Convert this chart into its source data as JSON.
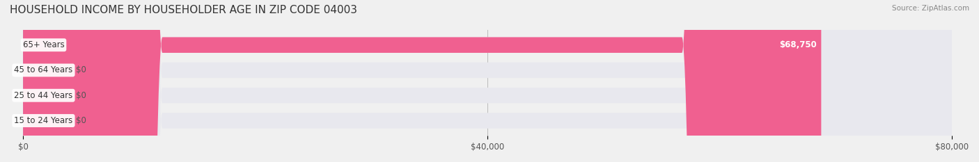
{
  "title": "HOUSEHOLD INCOME BY HOUSEHOLDER AGE IN ZIP CODE 04003",
  "source": "Source: ZipAtlas.com",
  "categories": [
    "15 to 24 Years",
    "25 to 44 Years",
    "45 to 64 Years",
    "65+ Years"
  ],
  "values": [
    0,
    0,
    0,
    68750
  ],
  "bar_colors": [
    "#d8a0c8",
    "#7ecece",
    "#a8a8d8",
    "#f06090"
  ],
  "label_colors": [
    "#d8a0c8",
    "#7ecece",
    "#a8a8d8",
    "#f06090"
  ],
  "xlim": [
    0,
    80000
  ],
  "xticks": [
    0,
    40000,
    80000
  ],
  "xtick_labels": [
    "$0",
    "$40,000",
    "$80,000"
  ],
  "value_labels": [
    "$0",
    "$0",
    "$0",
    "$68,750"
  ],
  "background_color": "#f0f0f0",
  "bar_background": "#e8e8ee",
  "figsize": [
    14.06,
    2.33
  ],
  "dpi": 100
}
